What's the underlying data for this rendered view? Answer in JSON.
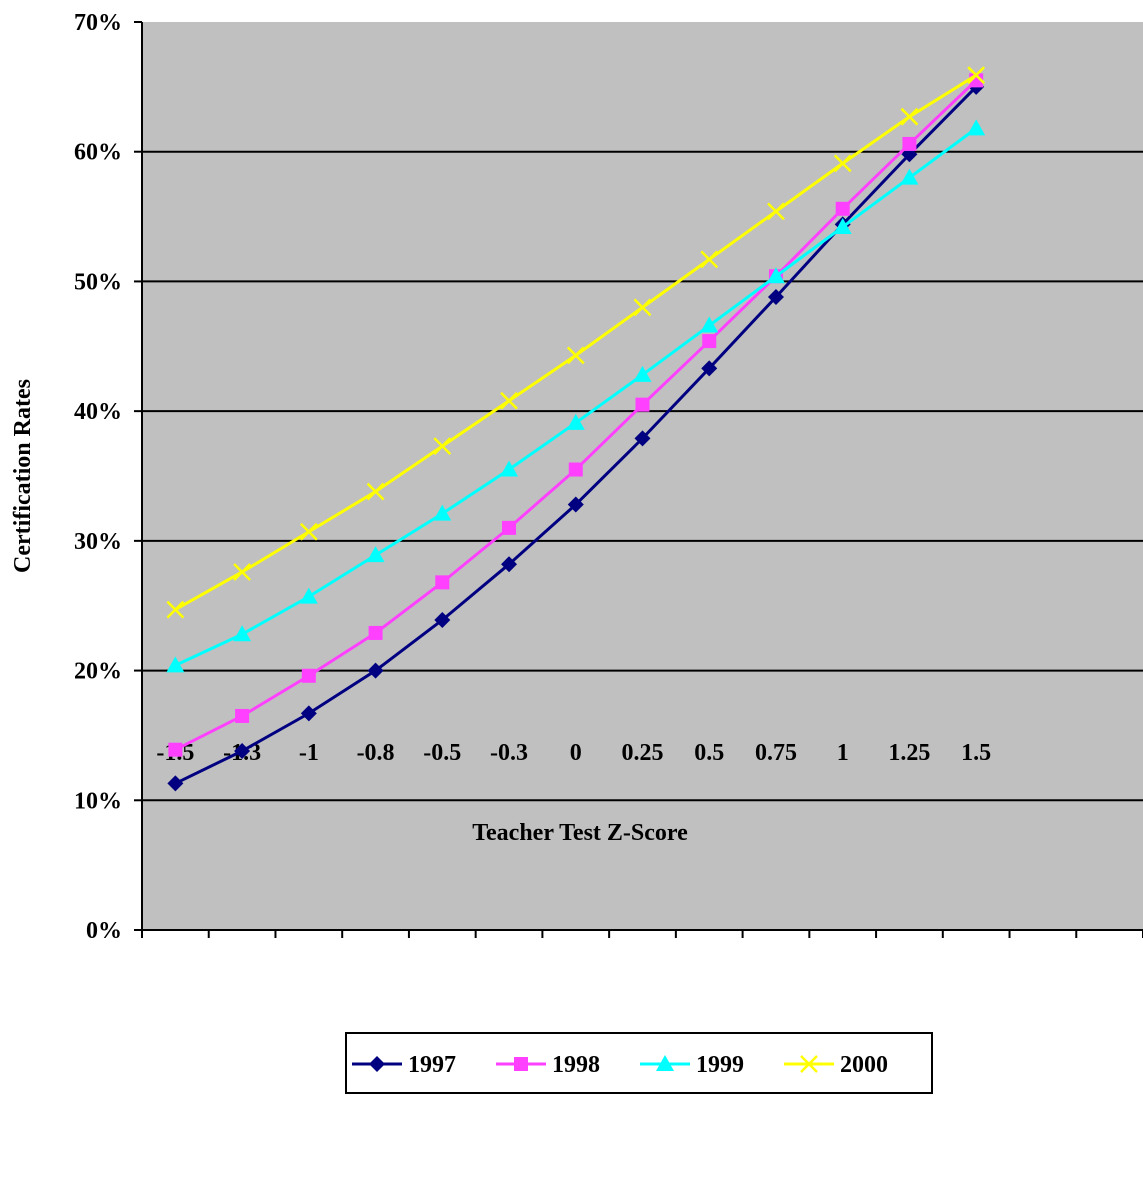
{
  "chart_data": {
    "type": "line",
    "title": "",
    "xlabel": "Teacher Test Z-Score",
    "ylabel": "Certification Rates",
    "x_ticks": [
      "-1.5",
      "-1.3",
      "-1",
      "-0.8",
      "-0.5",
      "-0.3",
      "0",
      "0.25",
      "0.5",
      "0.75",
      "1",
      "1.25",
      "1.5"
    ],
    "y_ticks": [
      "0%",
      "10%",
      "20%",
      "30%",
      "40%",
      "50%",
      "60%",
      "70%"
    ],
    "ylim": [
      0,
      70
    ],
    "grid": "horizontal",
    "legend_position": "bottom",
    "plot_background": "#c0c0c0",
    "series": [
      {
        "name": "1997",
        "color": "#000080",
        "marker": "diamond",
        "values": [
          11.3,
          13.8,
          16.7,
          20.0,
          23.9,
          28.2,
          32.8,
          37.9,
          43.3,
          48.8,
          54.4,
          59.8,
          65.0
        ]
      },
      {
        "name": "1998",
        "color": "#ff40ff",
        "marker": "square",
        "values": [
          13.9,
          16.5,
          19.6,
          22.9,
          26.8,
          31.0,
          35.5,
          40.5,
          45.4,
          50.4,
          55.6,
          60.6,
          65.5
        ]
      },
      {
        "name": "1999",
        "color": "#00ffff",
        "marker": "triangle",
        "values": [
          20.4,
          22.8,
          25.7,
          28.9,
          32.1,
          35.5,
          39.1,
          42.8,
          46.6,
          50.4,
          54.2,
          58.0,
          61.8
        ]
      },
      {
        "name": "2000",
        "color": "#ffff00",
        "marker": "x",
        "values": [
          24.7,
          27.6,
          30.7,
          33.8,
          37.3,
          40.8,
          44.3,
          48.0,
          51.7,
          55.4,
          59.1,
          62.7,
          65.9
        ]
      }
    ]
  }
}
